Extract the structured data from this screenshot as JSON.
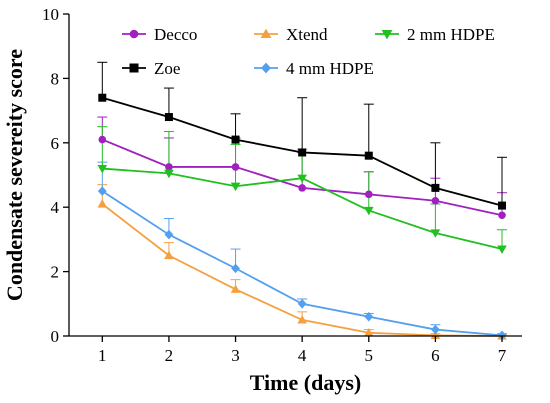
{
  "chart_data": {
    "type": "line",
    "xlabel": "Time (days)",
    "ylabel": "Condensate severeity score",
    "xlim": [
      0.5,
      7.3
    ],
    "ylim": [
      0,
      10
    ],
    "x_ticks": [
      1,
      2,
      3,
      4,
      5,
      6,
      7
    ],
    "y_ticks": [
      0,
      2,
      4,
      6,
      8,
      10
    ],
    "x_tick_labels": [
      "1",
      "2",
      "3",
      "4",
      "5",
      "6",
      "7"
    ],
    "y_tick_labels": [
      "0",
      "2",
      "4",
      "6",
      "8",
      "10"
    ],
    "grid": false,
    "legend_position": "top",
    "series": [
      {
        "name": "Decco",
        "color": "#a020c0",
        "marker": "circle",
        "x": [
          1,
          2,
          3,
          4,
          5,
          6,
          7
        ],
        "y": [
          6.1,
          5.25,
          5.25,
          4.6,
          4.4,
          4.2,
          3.75
        ],
        "err": [
          0.7,
          0.9,
          0.9,
          1.1,
          0.7,
          0.7,
          0.7
        ]
      },
      {
        "name": "Zoe",
        "color": "#000000",
        "marker": "square",
        "x": [
          1,
          2,
          3,
          4,
          5,
          6,
          7
        ],
        "y": [
          7.4,
          6.8,
          6.1,
          5.7,
          5.6,
          4.6,
          4.05
        ],
        "err": [
          1.1,
          0.9,
          0.8,
          1.7,
          1.6,
          1.4,
          1.5
        ]
      },
      {
        "name": "Xtend",
        "color": "#f5a040",
        "marker": "triangle-up",
        "x": [
          1,
          2,
          3,
          4,
          5,
          6,
          7
        ],
        "y": [
          4.1,
          2.5,
          1.45,
          0.5,
          0.1,
          0.02,
          0.0
        ],
        "err": [
          0.6,
          0.4,
          0.3,
          0.25,
          0.1,
          0.05,
          0.05
        ]
      },
      {
        "name": "4 mm HDPE",
        "color": "#55a0ee",
        "marker": "diamond",
        "x": [
          1,
          2,
          3,
          4,
          5,
          6,
          7
        ],
        "y": [
          4.5,
          3.15,
          2.1,
          1.0,
          0.6,
          0.2,
          0.02
        ],
        "err": [
          0.9,
          0.5,
          0.6,
          0.15,
          0.1,
          0.15,
          0.05
        ]
      },
      {
        "name": "2 mm HDPE",
        "color": "#20c020",
        "marker": "triangle-down",
        "x": [
          1,
          2,
          3,
          4,
          5,
          6,
          7
        ],
        "y": [
          5.2,
          5.05,
          4.65,
          4.9,
          3.9,
          3.2,
          2.7
        ],
        "err": [
          1.3,
          1.3,
          1.3,
          0.9,
          1.2,
          0.9,
          0.6
        ]
      }
    ]
  }
}
